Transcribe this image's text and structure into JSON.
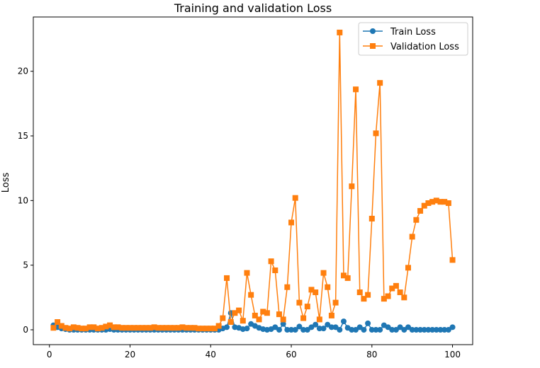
{
  "chart_data": {
    "type": "line",
    "title": "Training and validation Loss",
    "xlabel": "",
    "ylabel": "Loss",
    "xlim": [
      -4,
      105
    ],
    "ylim": [
      -1.15,
      24.2
    ],
    "xticks": [
      0,
      20,
      40,
      60,
      80,
      100
    ],
    "yticks": [
      0,
      5,
      10,
      15,
      20
    ],
    "grid": false,
    "legend": "top-right",
    "x": [
      1,
      2,
      3,
      4,
      5,
      6,
      7,
      8,
      9,
      10,
      11,
      12,
      13,
      14,
      15,
      16,
      17,
      18,
      19,
      20,
      21,
      22,
      23,
      24,
      25,
      26,
      27,
      28,
      29,
      30,
      31,
      32,
      33,
      34,
      35,
      36,
      37,
      38,
      39,
      40,
      41,
      42,
      43,
      44,
      45,
      46,
      47,
      48,
      49,
      50,
      51,
      52,
      53,
      54,
      55,
      56,
      57,
      58,
      59,
      60,
      61,
      62,
      63,
      64,
      65,
      66,
      67,
      68,
      69,
      70,
      71,
      72,
      73,
      74,
      75,
      76,
      77,
      78,
      79,
      80,
      81,
      82,
      83,
      84,
      85,
      86,
      87,
      88,
      89,
      90,
      91,
      92,
      93,
      94,
      95,
      96,
      97,
      98,
      99,
      100
    ],
    "series": [
      {
        "name": "Train Loss",
        "color": "#1f77b4",
        "marker": "circle",
        "values": [
          0.35,
          0.2,
          0.1,
          0.05,
          0.0,
          0.0,
          0.0,
          0.0,
          0.0,
          0.0,
          0.0,
          0.0,
          0.0,
          0.0,
          0.05,
          0.0,
          0.0,
          0.0,
          0.0,
          0.0,
          0.0,
          0.0,
          0.0,
          0.0,
          0.0,
          0.0,
          0.0,
          0.0,
          0.0,
          0.0,
          0.0,
          0.0,
          0.0,
          0.0,
          0.0,
          0.0,
          0.0,
          0.0,
          0.0,
          0.0,
          0.0,
          0.0,
          0.1,
          0.2,
          1.3,
          0.2,
          0.15,
          0.05,
          0.1,
          0.45,
          0.3,
          0.15,
          0.05,
          0.0,
          0.05,
          0.2,
          0.0,
          0.45,
          0.0,
          0.0,
          0.0,
          0.25,
          0.0,
          0.0,
          0.2,
          0.4,
          0.1,
          0.1,
          0.4,
          0.2,
          0.2,
          0.0,
          0.65,
          0.15,
          0.0,
          0.0,
          0.2,
          0.0,
          0.5,
          0.0,
          0.0,
          0.0,
          0.35,
          0.2,
          0.0,
          0.0,
          0.2,
          0.0,
          0.2,
          0.0,
          0.0,
          0.0,
          0.0,
          0.0,
          0.0,
          0.0,
          0.0,
          0.0,
          0.0,
          0.2
        ]
      },
      {
        "name": "Validation Loss",
        "color": "#ff7f0e",
        "marker": "square",
        "values": [
          0.15,
          0.6,
          0.3,
          0.15,
          0.1,
          0.2,
          0.15,
          0.1,
          0.1,
          0.2,
          0.2,
          0.1,
          0.15,
          0.25,
          0.35,
          0.2,
          0.2,
          0.15,
          0.15,
          0.15,
          0.15,
          0.15,
          0.15,
          0.15,
          0.15,
          0.2,
          0.15,
          0.15,
          0.15,
          0.15,
          0.15,
          0.15,
          0.2,
          0.15,
          0.15,
          0.15,
          0.1,
          0.1,
          0.1,
          0.1,
          0.1,
          0.3,
          0.9,
          4.0,
          0.6,
          1.3,
          1.5,
          0.7,
          4.4,
          2.7,
          1.1,
          0.8,
          1.4,
          1.3,
          5.3,
          4.6,
          1.2,
          0.8,
          3.3,
          8.3,
          10.2,
          2.1,
          0.9,
          1.8,
          3.1,
          2.9,
          0.8,
          4.4,
          3.3,
          1.1,
          2.1,
          23.0,
          4.2,
          4.0,
          11.1,
          18.6,
          2.9,
          2.4,
          2.7,
          8.6,
          15.2,
          19.1,
          2.4,
          2.6,
          3.2,
          3.4,
          2.9,
          2.5,
          4.8,
          7.2,
          8.5,
          9.2,
          9.6,
          9.8,
          9.9,
          10.0,
          9.9,
          9.9,
          9.8,
          5.4
        ]
      }
    ]
  }
}
